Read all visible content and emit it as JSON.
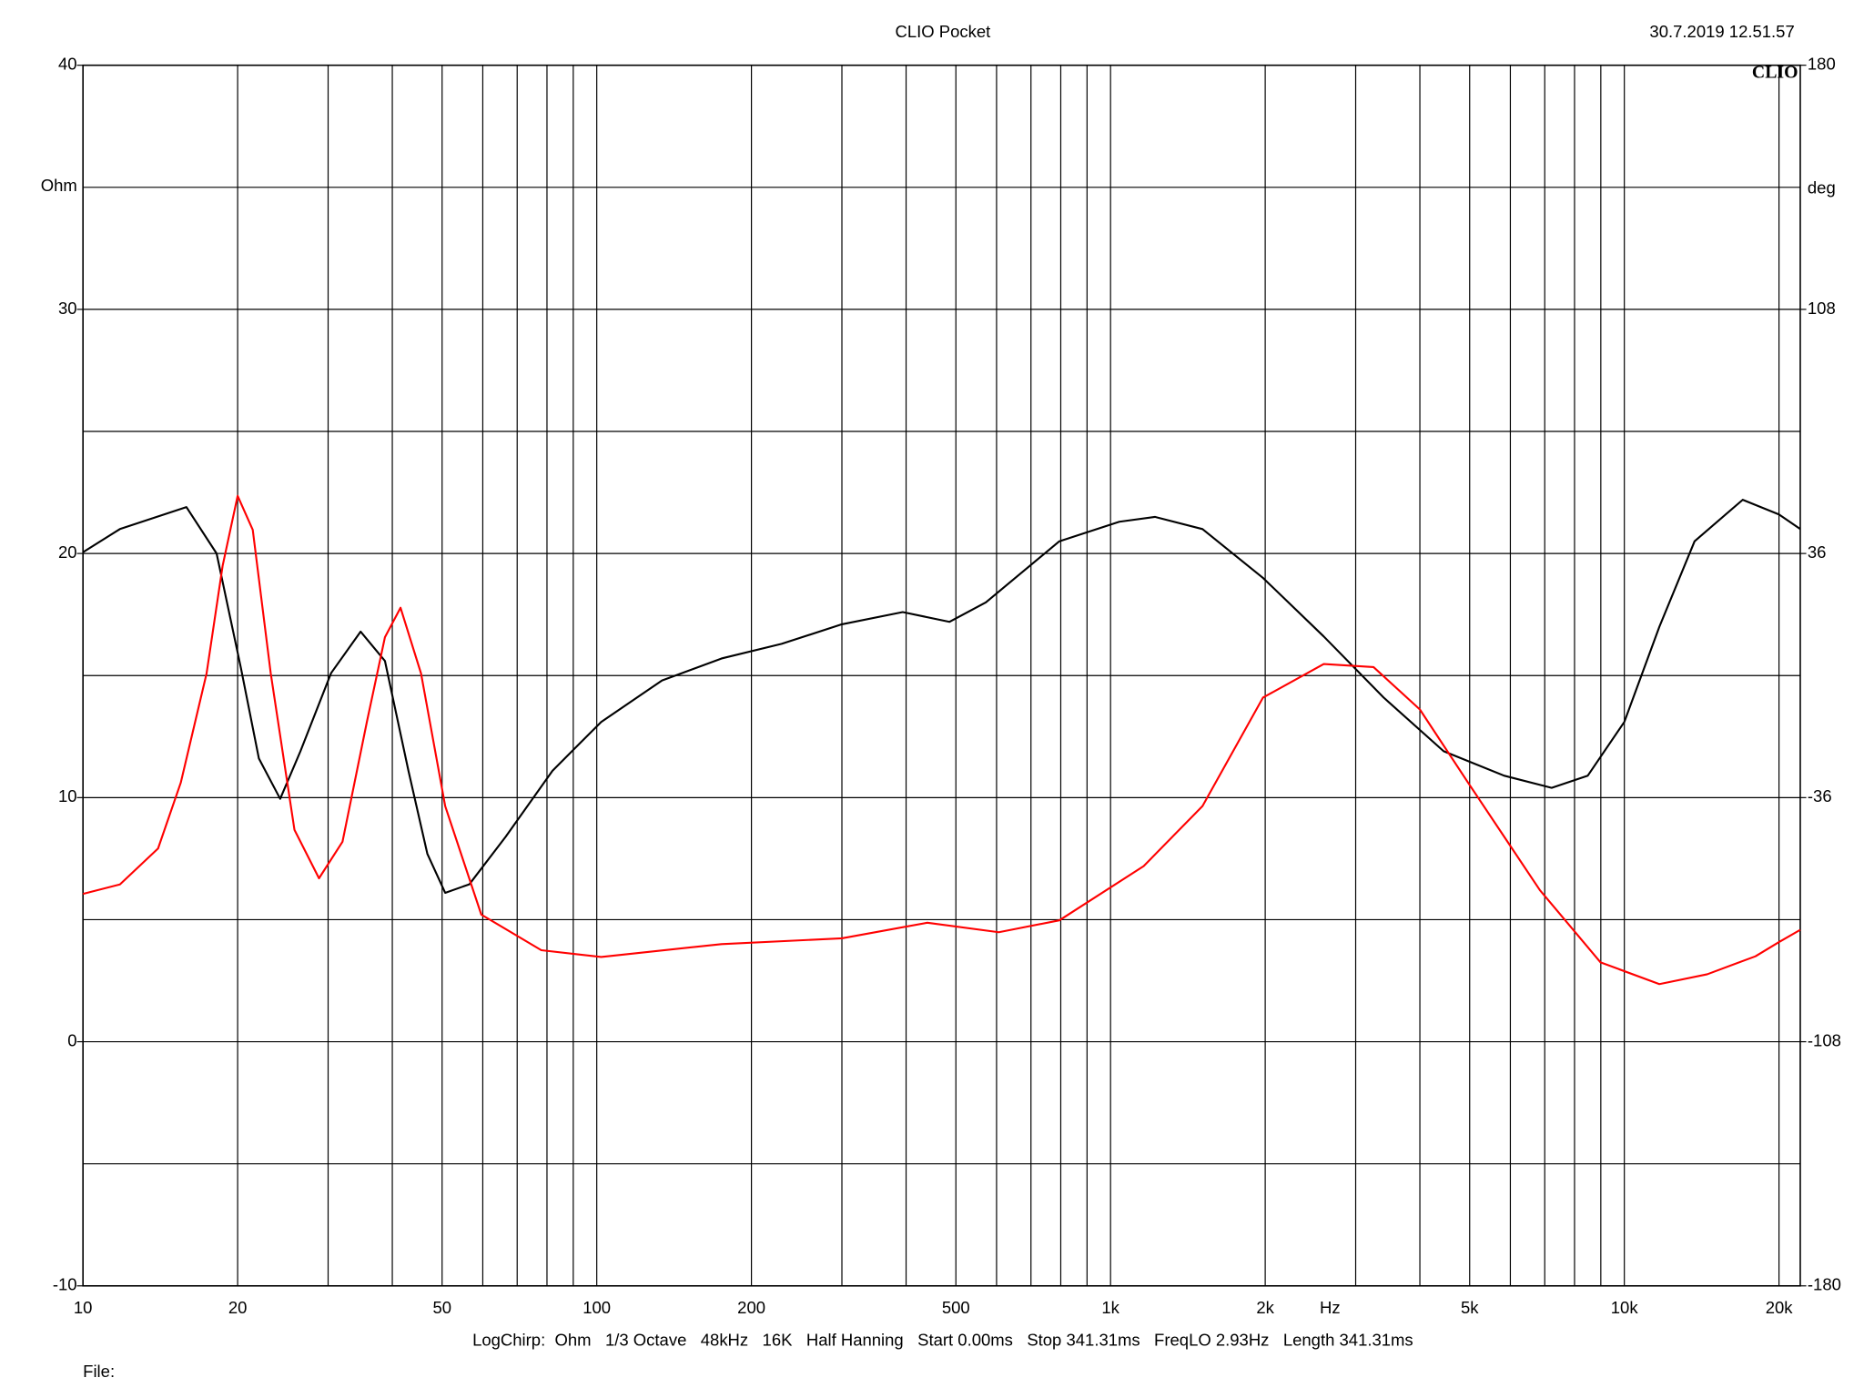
{
  "chart_data": {
    "type": "line",
    "title": "CLIO Pocket",
    "timestamp": "30.7.2019 12.51.57",
    "logo": "CLIO",
    "y_label": "Ohm",
    "y2_label": "deg",
    "x_label": "Hz",
    "footer": "LogChirp:  Ohm   1/3 Octave   48kHz   16K   Half Hanning   Start 0.00ms   Stop 341.31ms   FreqLO 2.93Hz   Length 341.31ms",
    "file_label": "File:",
    "log_x": true,
    "grid": true,
    "xlim": [
      10,
      22000
    ],
    "xticks": [
      10,
      20,
      50,
      100,
      200,
      500,
      {
        "value": 1000,
        "label": "1k"
      },
      {
        "value": 2000,
        "label": "2k"
      },
      {
        "value": 5000,
        "label": "5k"
      },
      {
        "value": 10000,
        "label": "10k"
      },
      {
        "value": 20000,
        "label": "20k"
      }
    ],
    "xgrid": [
      30,
      40,
      60,
      70,
      80,
      90,
      300,
      400,
      600,
      700,
      800,
      900,
      3000,
      4000,
      6000,
      7000,
      8000,
      9000
    ],
    "ylim": [
      -10,
      40
    ],
    "yticks": [
      -10,
      0,
      10,
      20,
      30,
      40
    ],
    "ygrid": [
      -5,
      5,
      15,
      25,
      35
    ],
    "y2lim": [
      -180,
      180
    ],
    "y2ticks": [
      -180,
      -108,
      -36,
      36,
      108,
      180
    ],
    "series": [
      {
        "color": "#000000",
        "x": [
          10,
          11.8,
          15.9,
          18.2,
          20.3,
          22.0,
          24.2,
          26.5,
          30.4,
          34.7,
          38.7,
          43,
          46.8,
          50.7,
          56.5,
          66.5,
          82,
          102,
          134,
          175,
          229,
          300,
          394,
          486,
          572,
          795,
          1040,
          1220,
          1510,
          1980,
          2600,
          3400,
          4450,
          5830,
          7220,
          8490,
          10000,
          11700,
          13700,
          17000,
          20000,
          22000
        ],
        "values": [
          20.05,
          21,
          21.9,
          20,
          15.3,
          11.6,
          9.95,
          11.9,
          15.1,
          16.8,
          15.6,
          11.1,
          7.7,
          6.1,
          6.45,
          8.4,
          11.1,
          13.1,
          14.8,
          15.7,
          16.3,
          17.1,
          17.6,
          17.2,
          18.0,
          20.5,
          21.3,
          21.5,
          21.0,
          19.0,
          16.6,
          14.1,
          11.9,
          10.9,
          10.4,
          10.9,
          13.1,
          17.0,
          20.5,
          22.2,
          21.6,
          21.0
        ]
      },
      {
        "color": "#ff0000",
        "axis": "y2",
        "x": [
          10,
          11.8,
          14.0,
          15.5,
          17.4,
          18.7,
          20.0,
          21.4,
          23.2,
          25.8,
          28.8,
          32.0,
          35.7,
          38.7,
          41.5,
          45.5,
          50.7,
          59.6,
          78,
          102,
          175,
          300,
          440,
          606,
          795,
          1160,
          1510,
          1980,
          2600,
          3250,
          4000,
          4960,
          6850,
          8990,
          11700,
          14500,
          18000,
          20000,
          22000
        ],
        "values": [
          -64.4,
          -61.6,
          -51,
          -31.6,
          0.6,
          32.4,
          53,
          43,
          0.6,
          -45.5,
          -59.8,
          -49,
          -13.6,
          11.3,
          20,
          0.6,
          -38.5,
          -70.5,
          -81,
          -83,
          -79.2,
          -77.5,
          -72.9,
          -75.7,
          -72.2,
          -56.2,
          -38.5,
          -6.5,
          3.4,
          2.5,
          -10,
          -31.5,
          -63.3,
          -84.6,
          -91,
          -88.1,
          -82.8,
          -78.6,
          -75
        ]
      }
    ]
  }
}
